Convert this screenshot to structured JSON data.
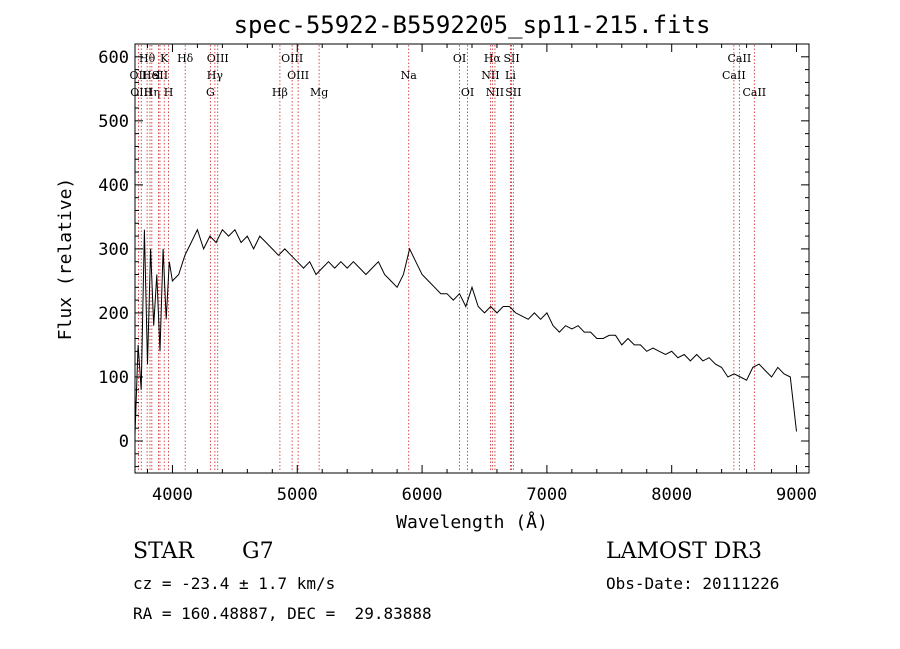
{
  "chart_data": {
    "type": "line",
    "title": "spec-55922-B5592205_sp11-215.fits",
    "xlabel": "Wavelength (Å)",
    "ylabel": "Flux (relative)",
    "xlim": [
      3700,
      9100
    ],
    "ylim": [
      -50,
      620
    ],
    "xticks": [
      4000,
      5000,
      6000,
      7000,
      8000,
      9000
    ],
    "yticks": [
      0,
      100,
      200,
      300,
      400,
      500,
      600
    ],
    "grid": false,
    "line_color": "#000000",
    "marker_color": "#cc2222",
    "series": [
      {
        "name": "flux",
        "x": [
          3700,
          3725,
          3750,
          3775,
          3800,
          3825,
          3850,
          3875,
          3900,
          3925,
          3950,
          3975,
          4000,
          4050,
          4100,
          4150,
          4200,
          4250,
          4300,
          4350,
          4400,
          4450,
          4500,
          4550,
          4600,
          4650,
          4700,
          4750,
          4800,
          4850,
          4900,
          4950,
          5000,
          5050,
          5100,
          5150,
          5200,
          5250,
          5300,
          5350,
          5400,
          5450,
          5500,
          5550,
          5600,
          5650,
          5700,
          5750,
          5800,
          5850,
          5900,
          5950,
          6000,
          6050,
          6100,
          6150,
          6200,
          6250,
          6300,
          6350,
          6400,
          6450,
          6500,
          6550,
          6600,
          6650,
          6700,
          6750,
          6800,
          6850,
          6900,
          6950,
          7000,
          7050,
          7100,
          7150,
          7200,
          7250,
          7300,
          7350,
          7400,
          7450,
          7500,
          7550,
          7600,
          7650,
          7700,
          7750,
          7800,
          7850,
          7900,
          7950,
          8000,
          8050,
          8100,
          8150,
          8200,
          8250,
          8300,
          8350,
          8400,
          8450,
          8500,
          8550,
          8600,
          8650,
          8700,
          8750,
          8800,
          8850,
          8900,
          8950,
          9000
        ],
        "y": [
          10,
          150,
          80,
          330,
          120,
          300,
          180,
          260,
          140,
          300,
          190,
          280,
          250,
          260,
          290,
          310,
          330,
          300,
          320,
          310,
          330,
          320,
          330,
          310,
          320,
          300,
          320,
          310,
          300,
          290,
          300,
          290,
          280,
          270,
          280,
          260,
          270,
          280,
          270,
          280,
          270,
          280,
          270,
          260,
          270,
          280,
          260,
          250,
          240,
          260,
          300,
          280,
          260,
          250,
          240,
          230,
          230,
          220,
          230,
          210,
          240,
          210,
          200,
          210,
          200,
          210,
          210,
          200,
          195,
          190,
          200,
          190,
          200,
          180,
          170,
          180,
          175,
          180,
          170,
          170,
          160,
          160,
          165,
          165,
          150,
          160,
          150,
          150,
          140,
          145,
          140,
          135,
          140,
          130,
          135,
          125,
          135,
          125,
          130,
          120,
          115,
          100,
          105,
          100,
          95,
          115,
          120,
          110,
          100,
          115,
          105,
          100,
          15
        ]
      }
    ],
    "lines": [
      {
        "label": "Hθ",
        "x": 3797,
        "row": 1
      },
      {
        "label": "OII",
        "x": 3727,
        "row": 2
      },
      {
        "label": "OIII",
        "x": 3750,
        "row": 3
      },
      {
        "label": "He",
        "x": 3820,
        "row": 2
      },
      {
        "label": "Hη",
        "x": 3835,
        "row": 3
      },
      {
        "label": "K",
        "x": 3934,
        "row": 1
      },
      {
        "label": "I",
        "x": 3888,
        "row": 2
      },
      {
        "label": "SII",
        "x": 3900,
        "row": 2
      },
      {
        "label": "H",
        "x": 3969,
        "row": 3
      },
      {
        "label": "Hδ",
        "x": 4102,
        "row": 1
      },
      {
        "label": "OIII",
        "x": 4363,
        "row": 1
      },
      {
        "label": "Hγ",
        "x": 4340,
        "row": 2
      },
      {
        "label": "G",
        "x": 4304,
        "row": 3
      },
      {
        "label": "Hβ",
        "x": 4861,
        "row": 3
      },
      {
        "label": "OIII",
        "x": 4959,
        "row": 1
      },
      {
        "label": "OIII",
        "x": 5007,
        "row": 2
      },
      {
        "label": "Mg",
        "x": 5175,
        "row": 3
      },
      {
        "label": "Na",
        "x": 5893,
        "row": 2
      },
      {
        "label": "OI",
        "x": 6300,
        "row": 1
      },
      {
        "label": "OI",
        "x": 6364,
        "row": 3
      },
      {
        "label": "Hα",
        "x": 6563,
        "row": 1
      },
      {
        "label": "NII",
        "x": 6548,
        "row": 2
      },
      {
        "label": "NII",
        "x": 6584,
        "row": 3
      },
      {
        "label": "SII",
        "x": 6717,
        "row": 1
      },
      {
        "label": "Li",
        "x": 6708,
        "row": 2
      },
      {
        "label": "SII",
        "x": 6731,
        "row": 3
      },
      {
        "label": "CaII",
        "x": 8542,
        "row": 1
      },
      {
        "label": "CaII",
        "x": 8498,
        "row": 2
      },
      {
        "label": "CaII",
        "x": 8662,
        "row": 3
      }
    ]
  },
  "info": {
    "object_class": "STAR",
    "subclass": "G7",
    "redshift": "cz = -23.4 ± 1.7 km/s",
    "coords": "RA = 160.48887, DEC =  29.83888",
    "survey": "LAMOST DR3",
    "obs_date": "Obs-Date: 20111226"
  }
}
